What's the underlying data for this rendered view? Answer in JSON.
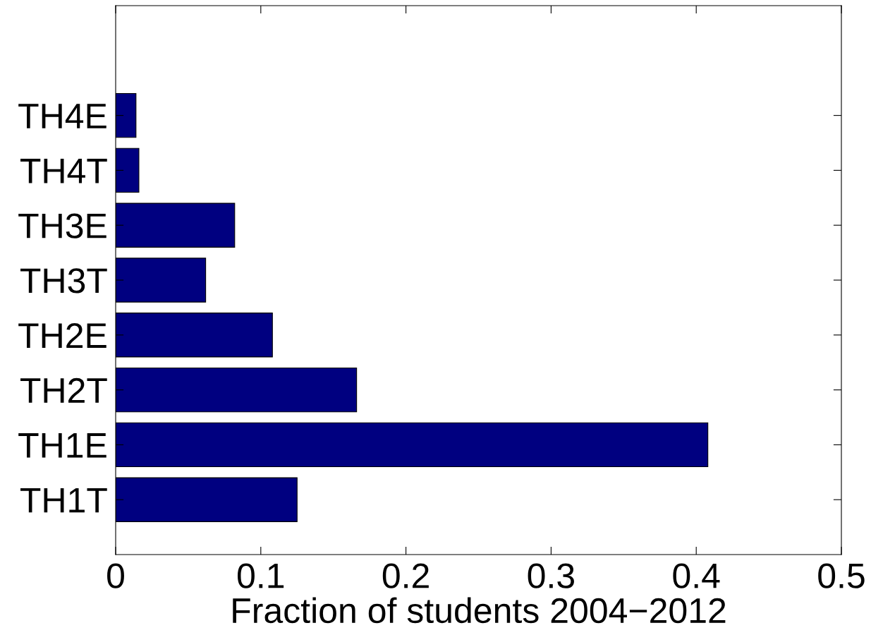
{
  "chart_data": {
    "type": "bar",
    "orientation": "horizontal",
    "xlabel": "Fraction of students 2004−2012",
    "categories": [
      "TH4E",
      "TH4T",
      "TH3E",
      "TH3T",
      "TH2E",
      "TH2T",
      "TH1E",
      "TH1T"
    ],
    "values": [
      0.014,
      0.016,
      0.082,
      0.062,
      0.108,
      0.166,
      0.408,
      0.125
    ],
    "color": "#000080",
    "xlim": [
      0,
      0.5
    ],
    "xticks": [
      0,
      0.1,
      0.2,
      0.3,
      0.4,
      0.5
    ],
    "grid": false,
    "legend": false
  }
}
